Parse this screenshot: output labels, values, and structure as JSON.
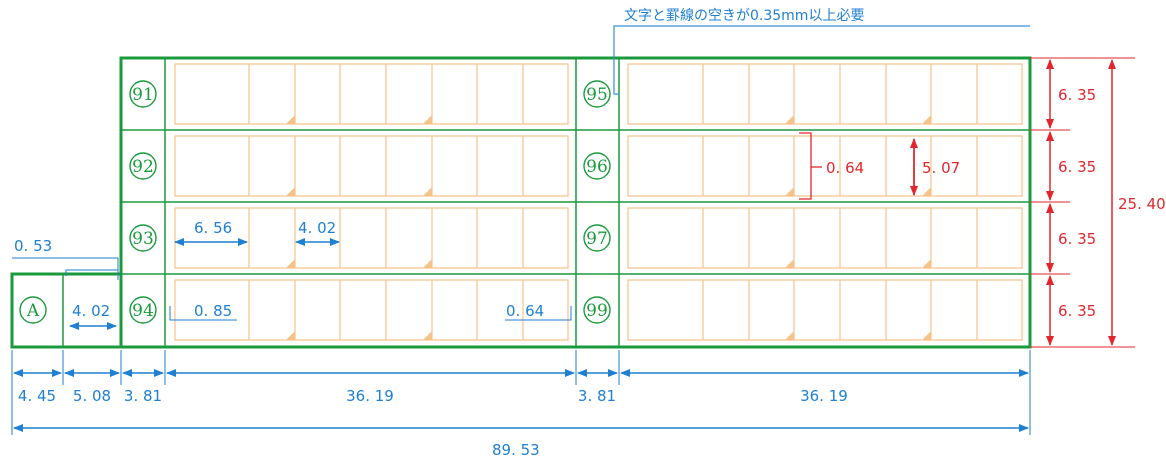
{
  "colors": {
    "frame": "#1a9a3c",
    "box": "#f5c38a",
    "blue": "#1f7fd1",
    "red": "#e3262b",
    "note_line": "#3a8ed8"
  },
  "top_note": "文字と罫線の空きが0.35mm以上必要",
  "row_labels": {
    "left": [
      "91",
      "92",
      "93",
      "94"
    ],
    "right": [
      "95",
      "96",
      "97",
      "99"
    ],
    "extra": "A"
  },
  "dims_bottom": [
    "4. 45",
    "5. 08",
    "3. 81",
    "36. 19",
    "3. 81",
    "36. 19"
  ],
  "dim_total": "89. 53",
  "dims_right_rows": [
    "6. 35",
    "6. 35",
    "6. 35",
    "6. 35"
  ],
  "dim_right_total": "25. 40",
  "dims_inner": {
    "gap_top_left": "0. 53",
    "box_width_small": "4. 02",
    "cell_width": "6. 56",
    "cell_width_2": "4. 02",
    "margin_left": "0. 85",
    "margin_right": "0. 64",
    "margin_vertical": "0. 64",
    "box_height": "5. 07"
  }
}
